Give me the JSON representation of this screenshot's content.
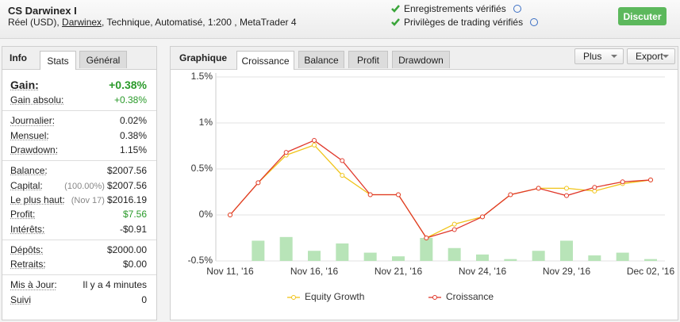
{
  "header": {
    "title": "CS Darwinex I",
    "account": "Réel (USD),",
    "broker": "Darwinex",
    "details": ", Technique, Automatisé, 1:200 , MetaTrader 4",
    "verifications": [
      "Enregistrements vérifiés",
      "Privilèges de trading vérifiés"
    ],
    "button": "Discuter"
  },
  "stats_panel": {
    "tabs": [
      "Info",
      "Stats",
      "Général"
    ],
    "groups": [
      [
        {
          "label": "Gain:",
          "value": "+0.38%",
          "color": "#2a9a2a"
        },
        {
          "label": "Gain absolu:",
          "value": "+0.38%",
          "color": "#2a9a2a"
        }
      ],
      [
        {
          "label": "Journalier:",
          "value": "0.02%"
        },
        {
          "label": "Mensuel:",
          "value": "0.38%"
        },
        {
          "label": "Drawdown:",
          "value": "1.15%"
        }
      ],
      [
        {
          "label": "Balance:",
          "value": "$2007.56"
        },
        {
          "label": "Capital:",
          "note": "(100.00%)",
          "value": "$2007.56"
        },
        {
          "label": "Le plus haut:",
          "note": "(Nov 17)",
          "value": "$2016.19"
        },
        {
          "label": "Profit:",
          "value": "$7.56",
          "color": "#2a9a2a"
        },
        {
          "label": "Intérêts:",
          "value": "-$0.91"
        }
      ],
      [
        {
          "label": "Dépôts:",
          "value": "$2000.00"
        },
        {
          "label": "Retraits:",
          "value": "$0.00"
        }
      ],
      [
        {
          "label": "Mis à Jour:",
          "value": "Il y a 4 minutes"
        },
        {
          "label": "Suivi",
          "value": "0"
        }
      ]
    ]
  },
  "chart_panel": {
    "title": "Graphique",
    "tabs": [
      "Croissance",
      "Balance",
      "Profit",
      "Drawdown"
    ],
    "buttons": [
      "Plus",
      "Export"
    ]
  },
  "chart_data": {
    "type": "line",
    "categories": [
      "Nov 11, '16",
      null,
      null,
      "Nov 16, '16",
      null,
      null,
      "Nov 21, '16",
      null,
      null,
      "Nov 24, '16",
      null,
      null,
      "Nov 29, '16",
      null,
      null,
      "Dec 02, '16"
    ],
    "series": [
      {
        "name": "Equity Growth",
        "color": "#f0c419",
        "values": [
          0,
          0.35,
          0.65,
          0.76,
          0.43,
          0.22,
          0.22,
          -0.25,
          -0.1,
          -0.02,
          0.22,
          0.29,
          0.29,
          0.26,
          0.34,
          0.38
        ]
      },
      {
        "name": "Croissance",
        "color": "#e0382b",
        "values": [
          0,
          0.35,
          0.68,
          0.81,
          0.59,
          0.22,
          0.22,
          -0.25,
          -0.16,
          -0.02,
          0.22,
          0.29,
          0.21,
          0.3,
          0.36,
          0.38
        ]
      }
    ],
    "bars": {
      "color": "#b8e4b8",
      "values": [
        null,
        -0.28,
        -0.24,
        -0.39,
        -0.31,
        -0.41,
        -0.45,
        -0.25,
        -0.36,
        -0.43,
        -0.48,
        -0.39,
        -0.28,
        -0.44,
        -0.41,
        -0.48
      ]
    },
    "ylim": [
      -0.5,
      1.5
    ],
    "yticks": [
      {
        "value": 1.5,
        "label": "1.5%"
      },
      {
        "value": 1,
        "label": "1%"
      },
      {
        "value": 0.5,
        "label": "0.5%"
      },
      {
        "value": 0,
        "label": "0%"
      },
      {
        "value": -0.5,
        "label": "-0.5%"
      }
    ],
    "grid": true
  }
}
